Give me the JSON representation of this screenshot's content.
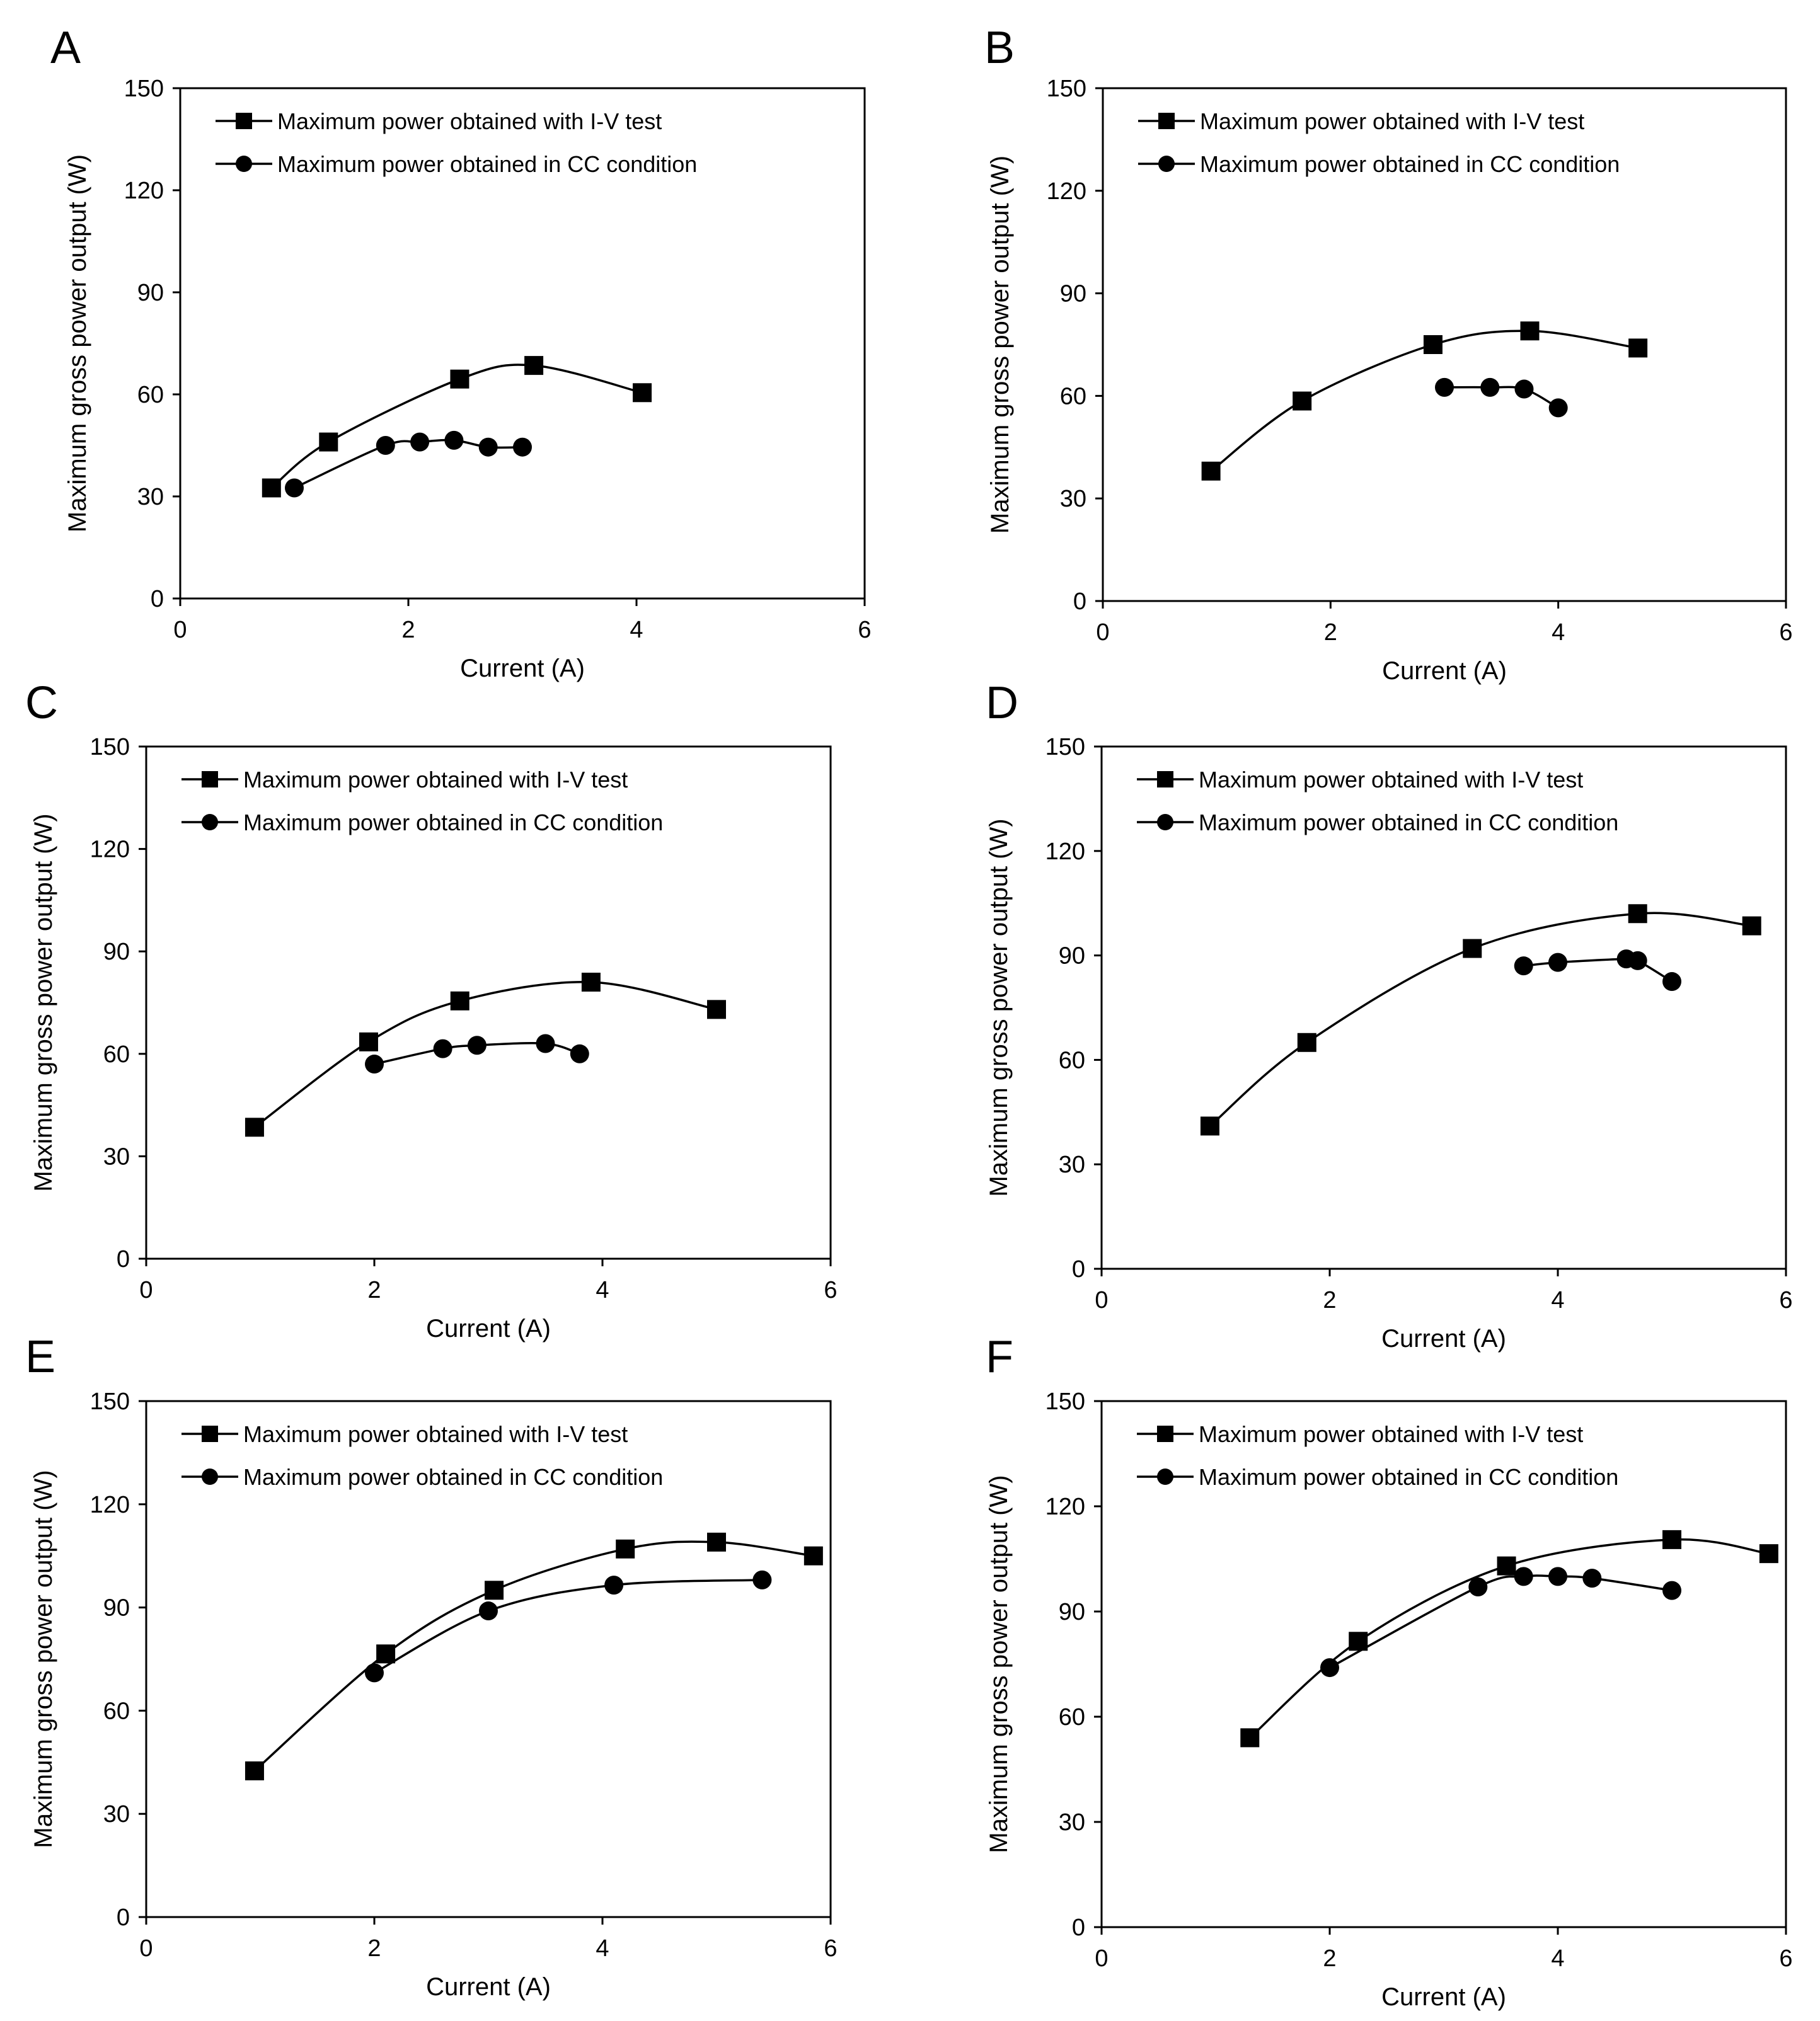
{
  "figure": {
    "accent": "#000000",
    "background": "#ffffff"
  },
  "chart_data": [
    {
      "panel": "A",
      "type": "scatter",
      "xlabel": "Current (A)",
      "ylabel": "Maximum gross power output (W)",
      "xlim": [
        0,
        6
      ],
      "ylim": [
        0,
        150
      ],
      "xticks": [
        0,
        2,
        4,
        6
      ],
      "yticks": [
        0,
        30,
        60,
        90,
        120,
        150
      ],
      "grid": false,
      "legend": "top-left, inside",
      "series": [
        {
          "name": "Maximum power obtained with I-V test",
          "marker": "square",
          "x": [
            0.8,
            1.3,
            2.45,
            3.1,
            4.05
          ],
          "y": [
            32.5,
            46,
            64.5,
            68.5,
            60.5
          ]
        },
        {
          "name": "Maximum power obtained in CC condition",
          "marker": "circle",
          "x": [
            1.0,
            1.8,
            2.1,
            2.4,
            2.7,
            3.0
          ],
          "y": [
            32.5,
            45,
            46,
            46.5,
            44.5,
            44.5
          ]
        }
      ]
    },
    {
      "panel": "B",
      "type": "scatter",
      "xlabel": "Current (A)",
      "ylabel": "Maximum gross power output (W)",
      "xlim": [
        0,
        6
      ],
      "ylim": [
        0,
        150
      ],
      "xticks": [
        0,
        2,
        4,
        6
      ],
      "yticks": [
        0,
        30,
        60,
        90,
        120,
        150
      ],
      "grid": false,
      "legend": "top-left, inside",
      "series": [
        {
          "name": "Maximum power obtained with I-V test",
          "marker": "square",
          "x": [
            0.95,
            1.75,
            2.9,
            3.75,
            4.7
          ],
          "y": [
            38,
            58.5,
            75,
            79,
            74
          ]
        },
        {
          "name": "Maximum power obtained in CC condition",
          "marker": "circle",
          "x": [
            3.0,
            3.4,
            3.7,
            4.0
          ],
          "y": [
            62.5,
            62.5,
            62,
            56.5
          ]
        }
      ]
    },
    {
      "panel": "C",
      "type": "scatter",
      "xlabel": "Current (A)",
      "ylabel": "Maximum gross power output (W)",
      "xlim": [
        0,
        6
      ],
      "ylim": [
        0,
        150
      ],
      "xticks": [
        0,
        2,
        4,
        6
      ],
      "yticks": [
        0,
        30,
        60,
        90,
        120,
        150
      ],
      "grid": false,
      "legend": "top-left, inside",
      "series": [
        {
          "name": "Maximum power obtained with I-V test",
          "marker": "square",
          "x": [
            0.95,
            1.95,
            2.75,
            3.9,
            5.0
          ],
          "y": [
            38.5,
            63.5,
            75.5,
            81,
            73
          ]
        },
        {
          "name": "Maximum power obtained in CC condition",
          "marker": "circle",
          "x": [
            2.0,
            2.6,
            2.9,
            3.5,
            3.8
          ],
          "y": [
            57,
            61.5,
            62.5,
            63,
            60
          ]
        }
      ]
    },
    {
      "panel": "D",
      "type": "scatter",
      "xlabel": "Current (A)",
      "ylabel": "Maximum gross power output (W)",
      "xlim": [
        0,
        6
      ],
      "ylim": [
        0,
        150
      ],
      "xticks": [
        0,
        2,
        4,
        6
      ],
      "yticks": [
        0,
        30,
        60,
        90,
        120,
        150
      ],
      "grid": false,
      "legend": "top-left, inside",
      "series": [
        {
          "name": "Maximum power obtained with I-V test",
          "marker": "square",
          "x": [
            0.95,
            1.8,
            3.25,
            4.7,
            5.7
          ],
          "y": [
            41,
            65,
            92,
            102,
            98.5
          ]
        },
        {
          "name": "Maximum power obtained in CC condition",
          "marker": "circle",
          "x": [
            3.7,
            4.0,
            4.6,
            4.7,
            5.0
          ],
          "y": [
            87,
            88,
            89,
            88.5,
            82.5
          ]
        }
      ]
    },
    {
      "panel": "E",
      "type": "scatter",
      "xlabel": "Current (A)",
      "ylabel": "Maximum gross power output (W)",
      "xlim": [
        0,
        6
      ],
      "ylim": [
        0,
        150
      ],
      "xticks": [
        0,
        2,
        4,
        6
      ],
      "yticks": [
        0,
        30,
        60,
        90,
        120,
        150
      ],
      "grid": false,
      "legend": "top-left, inside",
      "series": [
        {
          "name": "Maximum power obtained with I-V test",
          "marker": "square",
          "x": [
            0.95,
            2.1,
            3.05,
            4.2,
            5.0,
            5.85
          ],
          "y": [
            42.5,
            76.5,
            95,
            107,
            109,
            105
          ]
        },
        {
          "name": "Maximum power obtained in CC condition",
          "marker": "circle",
          "x": [
            2.0,
            3.0,
            4.1,
            5.4
          ],
          "y": [
            71,
            89,
            96.5,
            98
          ]
        }
      ]
    },
    {
      "panel": "F",
      "type": "scatter",
      "xlabel": "Current (A)",
      "ylabel": "Maximum gross power output (W)",
      "xlim": [
        0,
        6
      ],
      "ylim": [
        0,
        150
      ],
      "xticks": [
        0,
        2,
        4,
        6
      ],
      "yticks": [
        0,
        30,
        60,
        90,
        120,
        150
      ],
      "grid": false,
      "legend": "top-left, inside",
      "series": [
        {
          "name": "Maximum power obtained with I-V test",
          "marker": "square",
          "x": [
            1.3,
            2.25,
            3.55,
            5.0,
            5.85
          ],
          "y": [
            54,
            81.5,
            103,
            110.5,
            106.5
          ]
        },
        {
          "name": "Maximum power obtained in CC condition",
          "marker": "circle",
          "x": [
            2.0,
            3.3,
            3.7,
            4.0,
            4.3,
            5.0
          ],
          "y": [
            74,
            97,
            100,
            100,
            99.5,
            96
          ]
        }
      ]
    }
  ]
}
